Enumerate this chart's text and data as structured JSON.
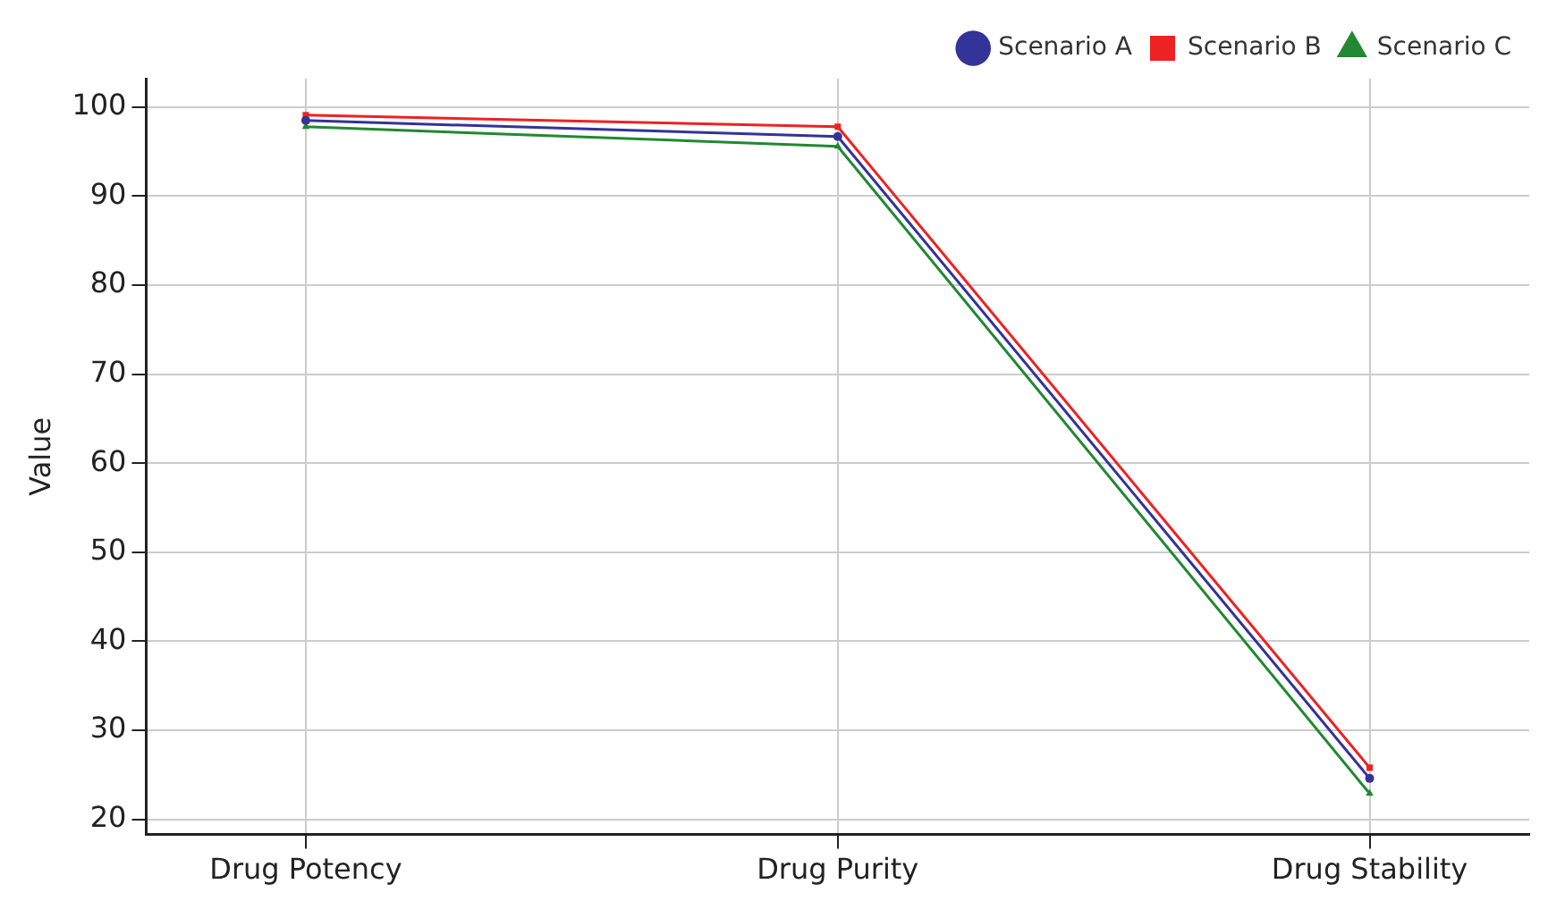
{
  "chart_data": {
    "type": "line",
    "ylabel": "Value",
    "categories": [
      "Drug Potency",
      "Drug Purity",
      "Drug Stability"
    ],
    "series": [
      {
        "name": "Scenario A",
        "color": "#333399",
        "marker": "circle",
        "values": [
          98.5,
          96.7,
          24.6
        ]
      },
      {
        "name": "Scenario B",
        "color": "#ee2222",
        "marker": "square",
        "values": [
          99.1,
          97.8,
          25.8
        ]
      },
      {
        "name": "Scenario C",
        "color": "#228833",
        "marker": "triangle",
        "values": [
          97.8,
          95.6,
          22.9
        ]
      }
    ],
    "ylim": [
      18.3,
      103.2
    ],
    "yticks": [
      20,
      30,
      40,
      50,
      60,
      70,
      80,
      90,
      100
    ],
    "grid": true,
    "legend": "top right",
    "line_style": "solid"
  }
}
